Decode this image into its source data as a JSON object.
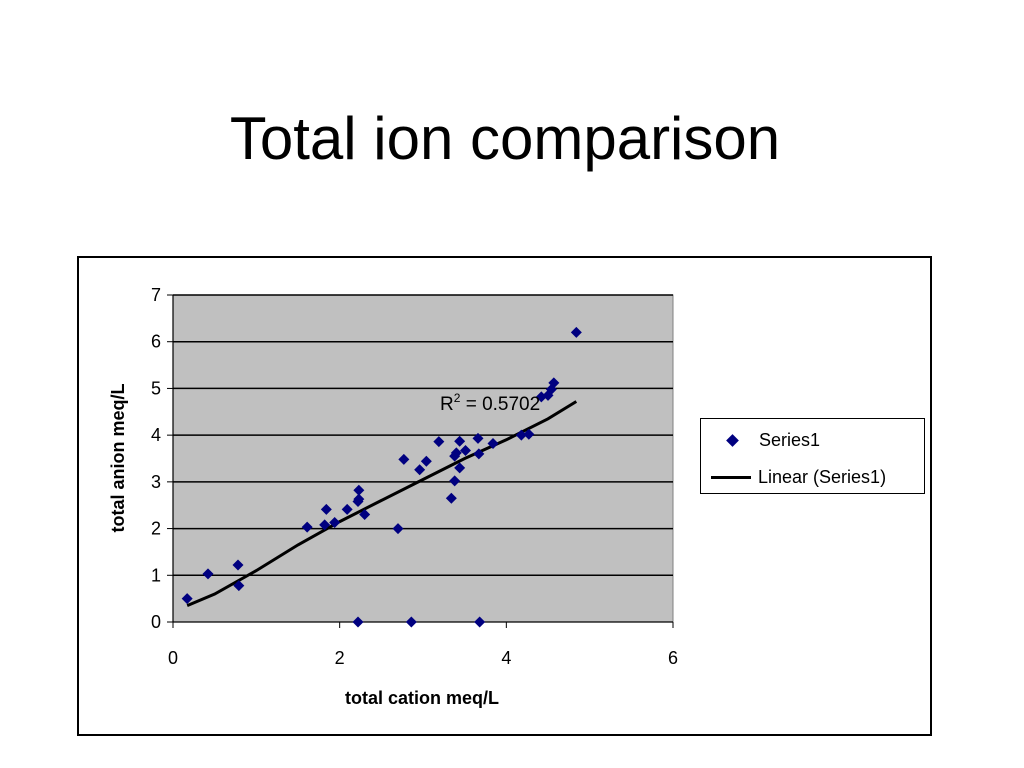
{
  "slide": {
    "title": "Total ion comparison"
  },
  "chart_data": {
    "type": "scatter",
    "title": "",
    "xlabel": "total cation meq/L",
    "ylabel": "total anion meq/L",
    "xlim": [
      0,
      6
    ],
    "ylim": [
      0,
      7
    ],
    "xticks": [
      "0",
      "2",
      "4",
      "6"
    ],
    "yticks": [
      "0",
      "1",
      "2",
      "3",
      "4",
      "5",
      "6",
      "7"
    ],
    "grid": "horizontal",
    "plot_background": "#c0c0c0",
    "marker_color": "#000080",
    "legend_position": "right",
    "series": [
      {
        "name": "Series1",
        "marker": "diamond",
        "points": [
          [
            0.17,
            0.5
          ],
          [
            0.42,
            1.03
          ],
          [
            0.78,
            1.22
          ],
          [
            0.79,
            0.78
          ],
          [
            1.61,
            2.03
          ],
          [
            1.82,
            2.08
          ],
          [
            1.84,
            2.41
          ],
          [
            1.94,
            2.13
          ],
          [
            2.09,
            2.41
          ],
          [
            2.22,
            2.58
          ],
          [
            2.23,
            2.63
          ],
          [
            2.23,
            2.82
          ],
          [
            2.3,
            2.3
          ],
          [
            2.22,
            0.0
          ],
          [
            2.7,
            2.0
          ],
          [
            2.77,
            3.48
          ],
          [
            2.96,
            3.26
          ],
          [
            3.04,
            3.44
          ],
          [
            3.19,
            3.86
          ],
          [
            3.34,
            2.65
          ],
          [
            3.38,
            3.02
          ],
          [
            3.38,
            3.55
          ],
          [
            3.4,
            3.62
          ],
          [
            3.44,
            3.3
          ],
          [
            3.44,
            3.87
          ],
          [
            3.51,
            3.67
          ],
          [
            3.66,
            3.93
          ],
          [
            3.67,
            3.6
          ],
          [
            3.84,
            3.82
          ],
          [
            4.18,
            4.0
          ],
          [
            4.27,
            4.02
          ],
          [
            4.42,
            4.82
          ],
          [
            4.5,
            4.85
          ],
          [
            4.54,
            4.98
          ],
          [
            4.57,
            5.12
          ],
          [
            4.84,
            6.2
          ],
          [
            2.86,
            0.0
          ],
          [
            3.68,
            0.0
          ]
        ]
      },
      {
        "name": "Linear (Series1)",
        "type": "line",
        "points": [
          [
            0.17,
            0.35
          ],
          [
            0.5,
            0.6
          ],
          [
            1.0,
            1.1
          ],
          [
            1.5,
            1.65
          ],
          [
            2.0,
            2.15
          ],
          [
            2.5,
            2.6
          ],
          [
            3.0,
            3.05
          ],
          [
            3.5,
            3.5
          ],
          [
            4.0,
            3.9
          ],
          [
            4.5,
            4.35
          ],
          [
            4.84,
            4.72
          ]
        ]
      }
    ],
    "annotation": {
      "label": "R",
      "superscript": "2",
      "equals": " = 0.5702"
    }
  }
}
